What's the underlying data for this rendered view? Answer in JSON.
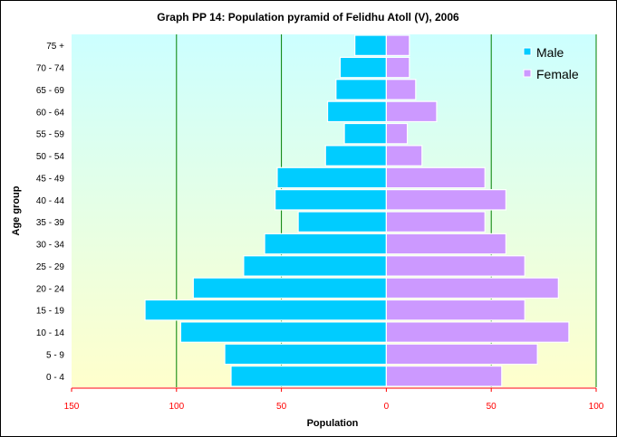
{
  "chart_data": {
    "type": "bar",
    "orientation": "horizontal-pyramid",
    "title": "Graph PP 14: Population pyramid of Felidhu Atoll (V), 2006",
    "xlabel": "Population",
    "ylabel": "Age group",
    "xlim": [
      -150,
      100
    ],
    "x_ticks": [
      -150,
      -100,
      -50,
      0,
      50,
      100
    ],
    "x_tick_labels": [
      "150",
      "100",
      "50",
      "0",
      "50",
      "100"
    ],
    "grid": "vertical",
    "legend": "top-right",
    "categories": [
      "0 - 4",
      "5 - 9",
      "10 - 14",
      "15 - 19",
      "20 - 24",
      "25 - 29",
      "30 - 34",
      "35 - 39",
      "40 - 44",
      "45 - 49",
      "50 - 54",
      "55 - 59",
      "60 - 64",
      "65 - 69",
      "70 - 74",
      "75 +"
    ],
    "series": [
      {
        "name": "Male",
        "side": "left",
        "color": "#00ccff",
        "values": [
          74,
          77,
          98,
          115,
          92,
          68,
          58,
          42,
          53,
          52,
          29,
          20,
          28,
          24,
          22,
          15
        ]
      },
      {
        "name": "Female",
        "side": "right",
        "color": "#cc99ff",
        "values": [
          55,
          72,
          87,
          66,
          82,
          66,
          57,
          47,
          57,
          47,
          17,
          10,
          24,
          14,
          11,
          11
        ]
      }
    ],
    "colors": {
      "grid": "#008000",
      "axis": "#ff0000",
      "tick_label": "#ff0000",
      "bg_top": "#ccffff",
      "bg_bottom": "#ffffcc"
    }
  }
}
